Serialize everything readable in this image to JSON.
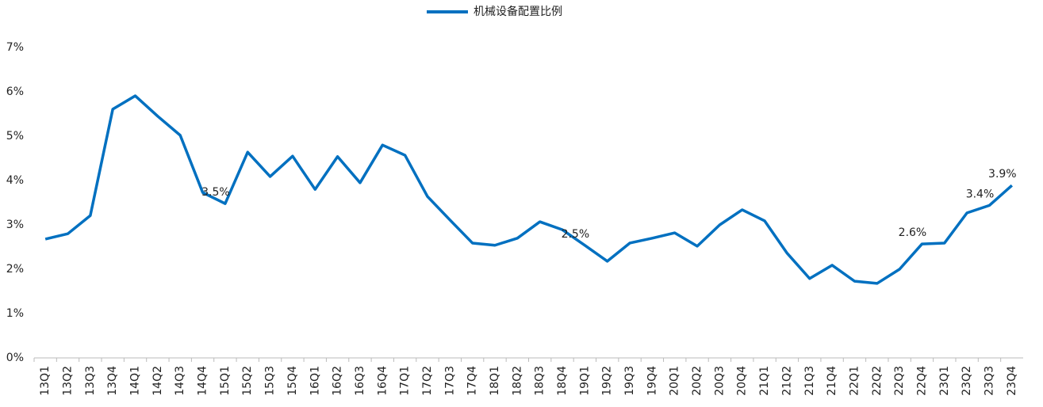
{
  "chart_data": {
    "type": "line",
    "categories": [
      "13Q1",
      "13Q2",
      "13Q3",
      "13Q4",
      "14Q1",
      "14Q2",
      "14Q3",
      "14Q4",
      "15Q1",
      "15Q2",
      "15Q3",
      "15Q4",
      "16Q1",
      "16Q2",
      "16Q3",
      "16Q4",
      "17Q1",
      "17Q2",
      "17Q3",
      "17Q4",
      "18Q1",
      "18Q2",
      "18Q3",
      "18Q4",
      "19Q1",
      "19Q2",
      "19Q3",
      "19Q4",
      "20Q1",
      "20Q2",
      "20Q3",
      "20Q4",
      "21Q1",
      "21Q2",
      "21Q3",
      "21Q4",
      "22Q1",
      "22Q2",
      "22Q3",
      "22Q4",
      "23Q1",
      "23Q2",
      "23Q3",
      "23Q4"
    ],
    "series": [
      {
        "name": "机械设备配置比例",
        "color": "#0070c0",
        "values": [
          2.68,
          2.8,
          3.21,
          5.61,
          5.91,
          5.45,
          5.02,
          3.73,
          3.48,
          4.64,
          4.09,
          4.55,
          3.8,
          4.54,
          3.95,
          4.8,
          4.57,
          3.64,
          3.11,
          2.59,
          2.54,
          2.7,
          3.07,
          2.89,
          2.54,
          2.18,
          2.59,
          2.7,
          2.82,
          2.52,
          3.0,
          3.34,
          3.09,
          2.36,
          1.79,
          2.09,
          1.73,
          1.68,
          2.0,
          2.57,
          2.59,
          3.27,
          3.44,
          3.89
        ],
        "value_labels": [
          null,
          null,
          null,
          null,
          null,
          null,
          null,
          null,
          "3.5%",
          null,
          null,
          null,
          null,
          null,
          null,
          null,
          null,
          null,
          null,
          null,
          null,
          null,
          null,
          null,
          "2.5%",
          null,
          null,
          null,
          null,
          null,
          null,
          null,
          null,
          null,
          null,
          null,
          null,
          null,
          null,
          "2.6%",
          null,
          null,
          "3.4%",
          "3.9%"
        ]
      }
    ],
    "ylim": [
      0,
      7
    ],
    "yticks": [
      {
        "value": 0,
        "label": "0%"
      },
      {
        "value": 1,
        "label": "1%"
      },
      {
        "value": 2,
        "label": "2%"
      },
      {
        "value": 3,
        "label": "3%"
      },
      {
        "value": 4,
        "label": "4%"
      },
      {
        "value": 5,
        "label": "5%"
      },
      {
        "value": 6,
        "label": "6%"
      },
      {
        "value": 7,
        "label": "7%"
      }
    ],
    "legend": "top"
  }
}
